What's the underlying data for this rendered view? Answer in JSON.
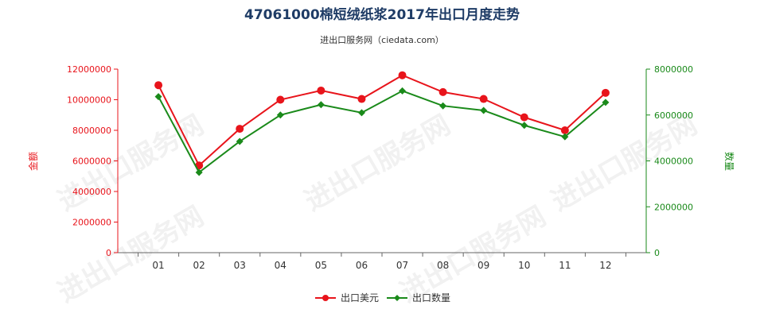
{
  "chart_data": {
    "type": "line",
    "title": "47061000棉短绒纸浆2017年出口月度走势",
    "subtitle": "进出口服务网（ciedata.com）",
    "watermark": "进出口服务网",
    "categories": [
      "01",
      "02",
      "03",
      "04",
      "05",
      "06",
      "07",
      "08",
      "09",
      "10",
      "11",
      "12"
    ],
    "y_left": {
      "label": "金额",
      "ylim": [
        0,
        12000000
      ],
      "ticks": [
        "0",
        "2000000",
        "4000000",
        "6000000",
        "8000000",
        "10000000",
        "12000000"
      ],
      "tick_values": [
        0,
        2000000,
        4000000,
        6000000,
        8000000,
        10000000,
        12000000
      ]
    },
    "y_right": {
      "label": "数量",
      "ylim": [
        0,
        8000000
      ],
      "ticks": [
        "0",
        "2000000",
        "4000000",
        "6000000",
        "8000000"
      ],
      "tick_values": [
        0,
        2000000,
        4000000,
        6000000,
        8000000
      ]
    },
    "series": [
      {
        "name": "出口美元",
        "axis": "left",
        "color": "#e8141b",
        "marker": "circle",
        "values": [
          10950000,
          5700000,
          8100000,
          10000000,
          10600000,
          10050000,
          11600000,
          10500000,
          10050000,
          8850000,
          8000000,
          10450000
        ]
      },
      {
        "name": "出口数量",
        "axis": "right",
        "color": "#1a8a1a",
        "marker": "diamond",
        "values": [
          6800000,
          3500000,
          4850000,
          6000000,
          6450000,
          6100000,
          7050000,
          6400000,
          6200000,
          5550000,
          5050000,
          6550000
        ]
      }
    ],
    "legend": {
      "placement": "bottom"
    },
    "grid": false,
    "colors": {
      "left_axis": "#e8141b",
      "right_axis": "#1a8a1a",
      "title": "#1f3c66"
    }
  }
}
